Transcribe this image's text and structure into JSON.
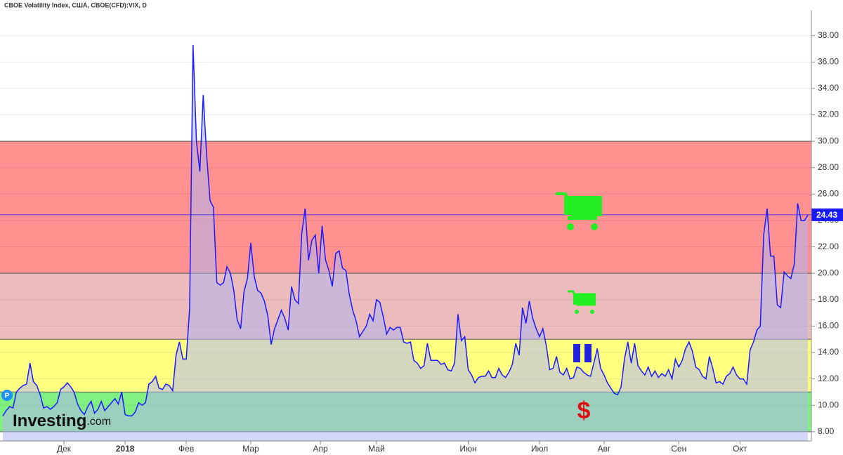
{
  "chart_data": {
    "type": "line",
    "title": "CBOE Volatility Index, США, CBOE(CFD):VIX, D",
    "logo": [
      "Investing",
      ".com"
    ],
    "marker": "P",
    "annotation": "$",
    "color": "#1a1aff",
    "area_color": "#b0b4f0",
    "values": [
      9.2,
      9.6,
      9.9,
      9.8,
      11.0,
      11.3,
      11.5,
      11.6,
      13.2,
      11.8,
      11.5,
      10.8,
      9.8,
      9.9,
      9.7,
      9.9,
      10.2,
      11.2,
      11.4,
      11.7,
      11.4,
      11.0,
      10.1,
      9.6,
      9.3,
      9.9,
      10.3,
      9.4,
      9.7,
      10.3,
      9.6,
      9.9,
      10.2,
      10.5,
      10.1,
      11.0,
      9.3,
      9.2,
      9.2,
      9.5,
      10.2,
      10.0,
      10.2,
      11.6,
      11.8,
      12.2,
      11.3,
      11.2,
      11.6,
      11.5,
      11.1,
      13.8,
      14.8,
      13.5,
      13.5,
      17.3,
      37.3,
      30.0,
      27.7,
      33.5,
      29.0,
      25.5,
      25.0,
      19.3,
      19.1,
      19.3,
      20.5,
      20.0,
      18.7,
      16.5,
      15.8,
      18.6,
      19.6,
      22.3,
      19.8,
      18.7,
      18.5,
      17.9,
      16.8,
      14.6,
      15.8,
      16.5,
      17.2,
      16.6,
      15.7,
      19.0,
      18.0,
      17.7,
      23.0,
      24.9,
      21.0,
      22.5,
      22.9,
      20.0,
      23.6,
      21.0,
      20.2,
      19.0,
      21.5,
      21.7,
      20.4,
      20.2,
      18.4,
      17.2,
      16.4,
      15.2,
      15.6,
      16.0,
      16.9,
      16.4,
      18.0,
      17.8,
      16.7,
      15.4,
      15.9,
      15.7,
      15.9,
      15.9,
      14.8,
      14.7,
      14.8,
      13.4,
      13.2,
      12.8,
      13.0,
      14.7,
      13.4,
      13.4,
      13.4,
      13.1,
      13.2,
      12.7,
      12.6,
      13.2,
      16.9,
      14.9,
      15.2,
      12.7,
      12.3,
      11.7,
      12.1,
      12.2,
      12.2,
      12.6,
      12.1,
      12.1,
      12.8,
      12.3,
      12.1,
      12.5,
      13.1,
      14.7,
      13.8,
      17.4,
      16.2,
      17.9,
      16.6,
      15.8,
      15.2,
      15.8,
      14.5,
      12.7,
      12.8,
      13.7,
      12.5,
      12.3,
      12.8,
      12.0,
      12.1,
      12.9,
      12.8,
      12.5,
      12.3,
      12.2,
      13.2,
      14.3,
      12.8,
      12.3,
      11.7,
      11.3,
      10.9,
      10.8,
      11.4,
      13.5,
      14.8,
      13.2,
      14.7,
      13.0,
      12.6,
      12.3,
      12.9,
      12.2,
      12.6,
      12.1,
      12.4,
      12.2,
      12.7,
      12.0,
      13.5,
      12.9,
      13.4,
      14.3,
      14.8,
      14.1,
      12.9,
      12.7,
      12.2,
      12.0,
      13.7,
      12.8,
      11.7,
      11.8,
      11.6,
      12.2,
      12.4,
      12.9,
      12.3,
      12.0,
      12.0,
      11.6,
      14.2,
      14.8,
      15.7,
      16.0,
      22.9,
      24.9,
      21.3,
      21.3,
      17.6,
      17.4,
      20.1,
      19.8,
      19.6,
      20.7,
      25.3,
      24.0,
      24.0,
      24.4
    ],
    "last": {
      "value": 24.43,
      "label": "24.43"
    },
    "bands": [
      {
        "from": 20,
        "to": 30,
        "color": "#ff9191"
      },
      {
        "from": 15,
        "to": 20,
        "color": "#ecbcbc"
      },
      {
        "from": 11,
        "to": 15,
        "color": "#ffff80"
      },
      {
        "from": 8,
        "to": 11,
        "color": "#80f080"
      }
    ],
    "xlim": [
      0,
      237
    ],
    "xticks": [
      {
        "value": 18,
        "label": "Дек"
      },
      {
        "value": 36,
        "label": "2018"
      },
      {
        "value": 54,
        "label": "Фев"
      },
      {
        "value": 73,
        "label": "Мар"
      },
      {
        "value": 93.5,
        "label": "Апр"
      },
      {
        "value": 110,
        "label": "Май"
      },
      {
        "value": 137,
        "label": "Июн"
      },
      {
        "value": 158,
        "label": "Июл"
      },
      {
        "value": 177,
        "label": "Авг"
      },
      {
        "value": 199,
        "label": "Сен"
      },
      {
        "value": 217,
        "label": "Окт"
      }
    ],
    "ylim": [
      7.3,
      39.9
    ],
    "yticks": [
      {
        "value": 8,
        "label": "8.00"
      },
      {
        "value": 10,
        "label": "10.00"
      },
      {
        "value": 12,
        "label": "12.00"
      },
      {
        "value": 14,
        "label": "14.00"
      },
      {
        "value": 16,
        "label": "16.00"
      },
      {
        "value": 18,
        "label": "18.00"
      },
      {
        "value": 20,
        "label": "20.00"
      },
      {
        "value": 22,
        "label": "22.00"
      },
      {
        "value": 24,
        "label": "24.00"
      },
      {
        "value": 26,
        "label": "26.00"
      },
      {
        "value": 28,
        "label": "28.00"
      },
      {
        "value": 30,
        "label": "30.00"
      },
      {
        "value": 32,
        "label": "32.00"
      },
      {
        "value": 34,
        "label": "34.00"
      },
      {
        "value": 36,
        "label": "36.00"
      },
      {
        "value": 38,
        "label": "38.00"
      }
    ],
    "grid": true
  }
}
